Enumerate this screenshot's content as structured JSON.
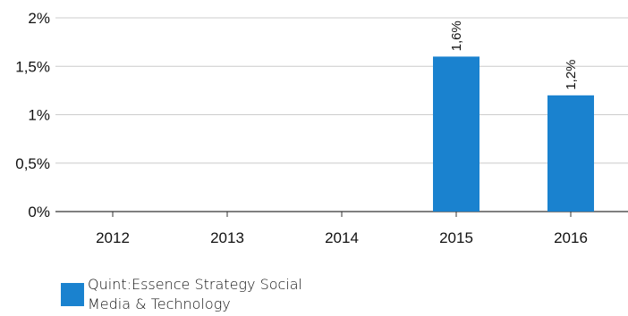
{
  "chart_data": {
    "type": "bar",
    "categories": [
      "2012",
      "2013",
      "2014",
      "2015",
      "2016"
    ],
    "series": [
      {
        "name": "Quint:Essence Strategy Social Media & Technology",
        "values": [
          0,
          0,
          0,
          1.6,
          1.2
        ],
        "data_labels": [
          "",
          "",
          "",
          "1,6%",
          "1,2%"
        ],
        "color": "#1a82cf"
      }
    ],
    "y_ticks": [
      {
        "value": 0,
        "label": "0%"
      },
      {
        "value": 0.5,
        "label": "0,5%"
      },
      {
        "value": 1,
        "label": "1%"
      },
      {
        "value": 1.5,
        "label": "1,5%"
      },
      {
        "value": 2,
        "label": "2%"
      }
    ],
    "ylim": [
      0,
      2
    ],
    "grid": true,
    "legend_position": "bottom-left"
  }
}
